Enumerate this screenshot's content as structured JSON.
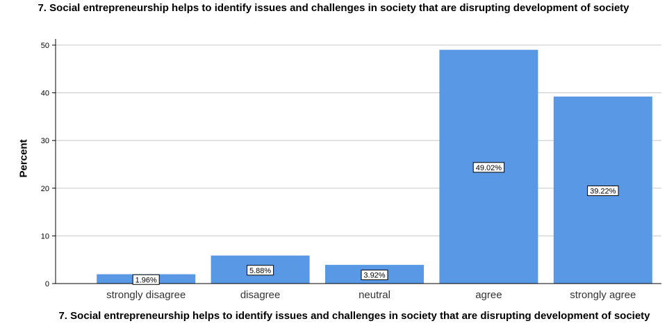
{
  "chart_data": {
    "type": "bar",
    "title": "7. Social entrepreneurship helps to identify issues and challenges in society that are disrupting development of society",
    "xlabel": "7. Social entrepreneurship helps to identify issues and challenges in society that are disrupting development of society",
    "ylabel": "Percent",
    "categories": [
      "strongly disagree",
      "disagree",
      "neutral",
      "agree",
      "strongly agree"
    ],
    "values": [
      1.96,
      5.88,
      3.92,
      49.02,
      39.22
    ],
    "data_labels": [
      "1.96%",
      "5.88%",
      "3.92%",
      "49.02%",
      "39.22%"
    ],
    "yticks": [
      "0",
      "10",
      "20",
      "30",
      "40",
      "50"
    ],
    "ylim": [
      0,
      51.3
    ],
    "grid": true,
    "bar_color": "#5898e5"
  }
}
